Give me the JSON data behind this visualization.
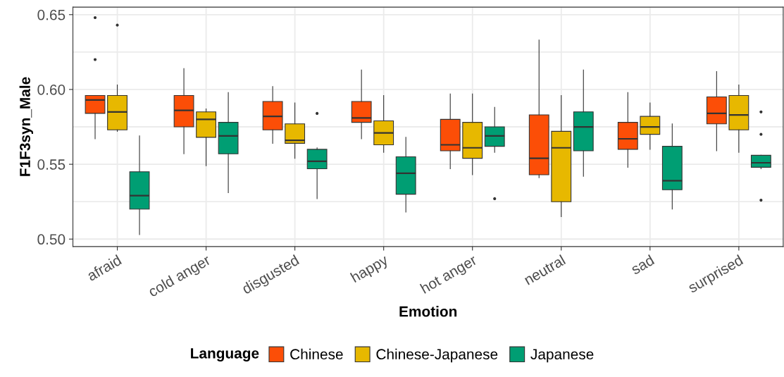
{
  "chart_data": {
    "type": "box",
    "xlabel": "Emotion",
    "ylabel": "F1F3syn_Male",
    "legend_title": "Language",
    "legend": "bottom",
    "grid": true,
    "categories": [
      "afraid",
      "cold anger",
      "disgusted",
      "happy",
      "hot anger",
      "neutral",
      "sad",
      "surprised"
    ],
    "ylim": [
      0.495,
      0.655
    ],
    "yticks": [
      {
        "value": 0.5,
        "label": "0.50"
      },
      {
        "value": 0.55,
        "label": "0.55"
      },
      {
        "value": 0.6,
        "label": "0.60"
      },
      {
        "value": 0.65,
        "label": "0.65"
      }
    ],
    "series": [
      {
        "name": "Chinese",
        "color": "#fc4e07",
        "boxes": [
          {
            "low": 0.567,
            "q1": 0.584,
            "median": 0.593,
            "q3": 0.596,
            "high": 0.596,
            "outliers": [
              0.62,
              0.648
            ]
          },
          {
            "low": 0.557,
            "q1": 0.575,
            "median": 0.586,
            "q3": 0.596,
            "high": 0.614
          },
          {
            "low": 0.564,
            "q1": 0.573,
            "median": 0.582,
            "q3": 0.592,
            "high": 0.602
          },
          {
            "low": 0.567,
            "q1": 0.578,
            "median": 0.581,
            "q3": 0.592,
            "high": 0.613
          },
          {
            "low": 0.547,
            "q1": 0.559,
            "median": 0.563,
            "q3": 0.58,
            "high": 0.597
          },
          {
            "low": 0.541,
            "q1": 0.543,
            "median": 0.554,
            "q3": 0.583,
            "high": 0.633
          },
          {
            "low": 0.548,
            "q1": 0.56,
            "median": 0.567,
            "q3": 0.578,
            "high": 0.598
          },
          {
            "low": 0.559,
            "q1": 0.577,
            "median": 0.584,
            "q3": 0.595,
            "high": 0.612
          }
        ]
      },
      {
        "name": "Chinese-Japanese",
        "color": "#e7b800",
        "boxes": [
          {
            "low": 0.572,
            "q1": 0.573,
            "median": 0.585,
            "q3": 0.596,
            "high": 0.603,
            "outliers": [
              0.643
            ]
          },
          {
            "low": 0.549,
            "q1": 0.568,
            "median": 0.58,
            "q3": 0.585,
            "high": 0.587
          },
          {
            "low": 0.554,
            "q1": 0.564,
            "median": 0.566,
            "q3": 0.577,
            "high": 0.591
          },
          {
            "low": 0.558,
            "q1": 0.563,
            "median": 0.571,
            "q3": 0.579,
            "high": 0.596
          },
          {
            "low": 0.543,
            "q1": 0.554,
            "median": 0.561,
            "q3": 0.578,
            "high": 0.597
          },
          {
            "low": 0.515,
            "q1": 0.525,
            "median": 0.561,
            "q3": 0.572,
            "high": 0.596
          },
          {
            "low": 0.56,
            "q1": 0.57,
            "median": 0.575,
            "q3": 0.582,
            "high": 0.591
          },
          {
            "low": 0.558,
            "q1": 0.573,
            "median": 0.583,
            "q3": 0.596,
            "high": 0.603
          }
        ]
      },
      {
        "name": "Japanese",
        "color": "#009e73",
        "boxes": [
          {
            "low": 0.503,
            "q1": 0.52,
            "median": 0.529,
            "q3": 0.545,
            "high": 0.569
          },
          {
            "low": 0.531,
            "q1": 0.557,
            "median": 0.569,
            "q3": 0.578,
            "high": 0.598
          },
          {
            "low": 0.527,
            "q1": 0.547,
            "median": 0.552,
            "q3": 0.56,
            "high": 0.561,
            "outliers": [
              0.584
            ]
          },
          {
            "low": 0.518,
            "q1": 0.53,
            "median": 0.544,
            "q3": 0.555,
            "high": 0.568
          },
          {
            "low": 0.558,
            "q1": 0.562,
            "median": 0.569,
            "q3": 0.575,
            "high": 0.588,
            "outliers": [
              0.527
            ]
          },
          {
            "low": 0.542,
            "q1": 0.559,
            "median": 0.575,
            "q3": 0.585,
            "high": 0.613
          },
          {
            "low": 0.52,
            "q1": 0.533,
            "median": 0.539,
            "q3": 0.562,
            "high": 0.577
          },
          {
            "low": 0.547,
            "q1": 0.548,
            "median": 0.551,
            "q3": 0.556,
            "high": 0.556,
            "outliers": [
              0.526,
              0.57,
              0.585
            ]
          }
        ]
      }
    ]
  }
}
